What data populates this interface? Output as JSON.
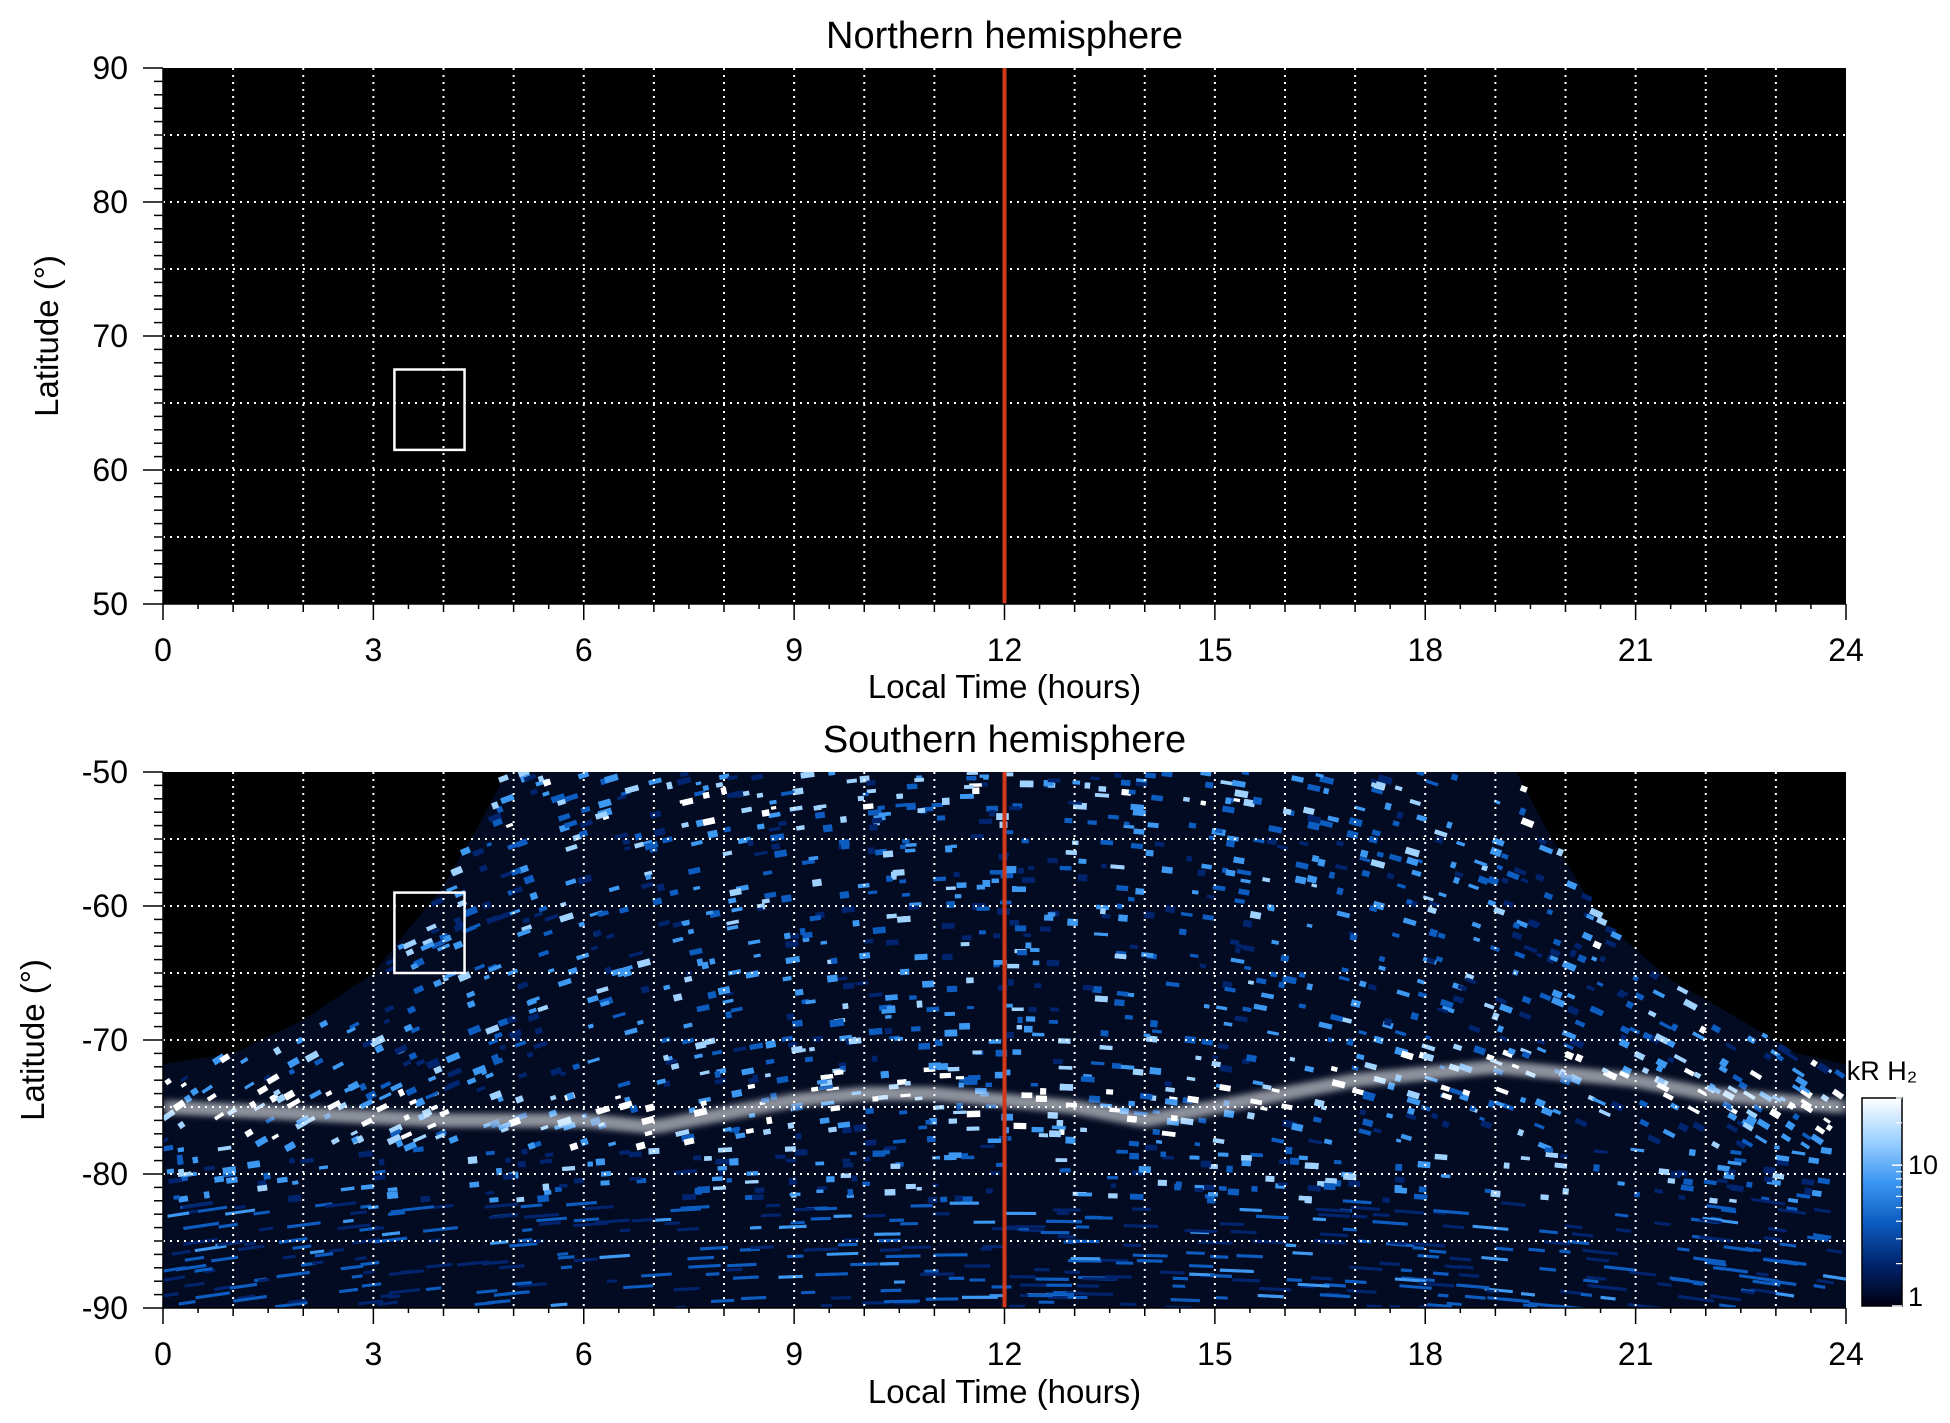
{
  "chart_data": [
    {
      "type": "heatmap",
      "title": "Northern hemisphere",
      "xlabel": "Local Time (hours)",
      "ylabel": "Latitude (°)",
      "xlim": [
        0,
        24
      ],
      "ylim": [
        50,
        90
      ],
      "xticks": [
        0,
        3,
        6,
        9,
        12,
        15,
        18,
        21,
        24
      ],
      "yticks": [
        50,
        60,
        70,
        80,
        90
      ],
      "xtick_labels": [
        "0",
        "3",
        "6",
        "9",
        "12",
        "15",
        "18",
        "21",
        "24"
      ],
      "ytick_labels": [
        "50",
        "60",
        "70",
        "80",
        "90"
      ],
      "grid": true,
      "noon_marker": {
        "local_time": 12,
        "color": "#d03a1a"
      },
      "box": {
        "lt": [
          3.3,
          4.3
        ],
        "lat": [
          61.5,
          67.5
        ]
      },
      "observed_coverage": "none"
    },
    {
      "type": "heatmap",
      "title": "Southern hemisphere",
      "xlabel": "Local Time (hours)",
      "ylabel": "Latitude (°)",
      "xlim": [
        0,
        24
      ],
      "ylim": [
        -90,
        -50
      ],
      "xticks": [
        0,
        3,
        6,
        9,
        12,
        15,
        18,
        21,
        24
      ],
      "yticks": [
        -90,
        -80,
        -70,
        -60,
        -50
      ],
      "xtick_labels": [
        "0",
        "3",
        "6",
        "9",
        "12",
        "15",
        "18",
        "21",
        "24"
      ],
      "ytick_labels": [
        "-90",
        "-80",
        "-70",
        "-60",
        "-50"
      ],
      "grid": true,
      "noon_marker": {
        "local_time": 12,
        "color": "#d03a1a"
      },
      "box": {
        "lt": [
          3.3,
          4.3
        ],
        "lat": [
          -65.0,
          -59.0
        ]
      },
      "coverage_edge": {
        "local_time": [
          0,
          1,
          2,
          3,
          4,
          4.5,
          4.9,
          19.3,
          19.7,
          20.5,
          21.5,
          22.5,
          23.3,
          24
        ],
        "latitude": [
          -71.8,
          -71.0,
          -68.5,
          -65.0,
          -58.5,
          -54.0,
          -50.0,
          -50.0,
          -54.0,
          -61.0,
          -65.5,
          -68.5,
          -71.0,
          -71.8
        ]
      },
      "auroral_oval": {
        "local_time": [
          0,
          2,
          4,
          6,
          7,
          8,
          9,
          10,
          11,
          12,
          13,
          14,
          15,
          16,
          17,
          18,
          19,
          20,
          21,
          22,
          24
        ],
        "latitude": [
          -75.0,
          -75.5,
          -76.0,
          -76.0,
          -76.5,
          -75.5,
          -74.5,
          -74.0,
          -74.0,
          -74.5,
          -75.0,
          -76.0,
          -75.0,
          -74.0,
          -73.0,
          -72.5,
          -72.0,
          -72.5,
          -73.0,
          -74.0,
          -75.0
        ]
      },
      "colorbar": {
        "label": "kR H₂",
        "scale": "log",
        "range": [
          1,
          30
        ],
        "ticks": [
          1,
          10
        ],
        "tick_labels": [
          "1",
          "10"
        ],
        "colors": [
          "#000010",
          "#00246e",
          "#0d5cc0",
          "#3d98f2",
          "#9fd2ff",
          "#ffffff"
        ]
      }
    }
  ]
}
